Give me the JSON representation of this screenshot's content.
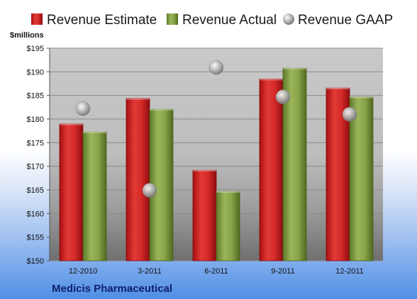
{
  "chart_data": {
    "type": "bar",
    "title": "",
    "ylabel": "$millions",
    "xlabel": "",
    "company": "Medicis Pharmaceutical",
    "categories": [
      "12-2010",
      "3-2011",
      "6-2011",
      "9-2011",
      "12-2011"
    ],
    "ylim": [
      150,
      195
    ],
    "yticks": [
      150,
      155,
      160,
      165,
      170,
      175,
      180,
      185,
      190,
      195
    ],
    "ytick_labels": [
      "$150",
      "$155",
      "$160",
      "$165",
      "$170",
      "$175",
      "$180",
      "$185",
      "$190",
      "$195"
    ],
    "grid": true,
    "legend_position": "top",
    "series": [
      {
        "name": "Revenue Estimate",
        "kind": "bar",
        "color": "#cc1f1f",
        "values": [
          179.0,
          184.4,
          169.2,
          188.5,
          186.6
        ]
      },
      {
        "name": "Revenue Actual",
        "kind": "bar",
        "color": "#7e9a3e",
        "values": [
          177.3,
          182.1,
          164.7,
          190.8,
          184.7
        ]
      },
      {
        "name": "Revenue GAAP",
        "kind": "marker",
        "color": "#a8a8a8",
        "values": [
          182.2,
          164.9,
          190.9,
          184.7,
          181.0
        ]
      }
    ]
  }
}
